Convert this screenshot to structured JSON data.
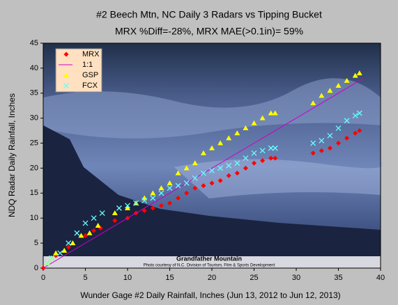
{
  "chart_data": {
    "type": "scatter",
    "title": "#2 Beech Mtn, NC Daily 3 Radars  vs Tipping Bucket",
    "subtitle": "MRX %Diff=-28%, MRX MAE(>0.1in)= 59%",
    "xlabel": "Wunder Gage #2 Daily Rainfall, Inches (Jun 13, 2012 to Jun 12, 2013)",
    "ylabel": "NDQ Radar Daily Rainfall, Inches",
    "annotations": [
      "Grandfather Mountain",
      "Photo courtesy of N.C. Division of Tourism, Film & Sports Development"
    ],
    "xlim": [
      0,
      40
    ],
    "ylim": [
      0,
      45
    ],
    "xticks": [
      0,
      5,
      10,
      15,
      20,
      25,
      30,
      35,
      40
    ],
    "yticks": [
      0,
      5,
      10,
      15,
      20,
      25,
      30,
      35,
      40,
      45
    ],
    "grid": false,
    "legend_position": "upper left",
    "series": [
      {
        "name": "MRX",
        "color": "#ff0000",
        "marker": "diamond",
        "x": [
          0,
          1.5,
          3,
          5,
          6,
          6.8,
          8.5,
          10,
          11,
          12,
          13,
          14,
          15,
          16,
          17,
          18,
          19,
          20,
          21,
          22,
          23,
          24,
          25,
          26,
          27,
          27.5,
          32,
          33,
          34,
          35,
          36,
          37,
          37.5
        ],
        "values": [
          0,
          2.5,
          4.2,
          6.5,
          7.5,
          8,
          9.5,
          10,
          11,
          11.5,
          12,
          12.5,
          13,
          14,
          15,
          16,
          16.5,
          17,
          17.5,
          18.5,
          19,
          20,
          21,
          21.5,
          22,
          22,
          23,
          23.5,
          24,
          25,
          26,
          27,
          27.5
        ]
      },
      {
        "name": "1:1",
        "color": "#cc00cc",
        "marker": "line",
        "x": [
          0,
          38
        ],
        "values": [
          0,
          38
        ]
      },
      {
        "name": "GSP",
        "color": "#ffff00",
        "marker": "triangle",
        "x": [
          0.5,
          1,
          1.5,
          2.5,
          3.5,
          4.5,
          5.5,
          6.5,
          8.5,
          10,
          11,
          12,
          13,
          14,
          15,
          16,
          17,
          18,
          19,
          20,
          21,
          22,
          23,
          24,
          25,
          26,
          27,
          27.5,
          32,
          33,
          34,
          35,
          36,
          37,
          37.5
        ],
        "values": [
          1,
          2,
          3,
          3.5,
          5,
          6.5,
          7,
          8.5,
          11,
          12,
          13,
          14,
          15,
          16,
          17,
          19,
          20,
          21,
          23,
          24,
          25,
          26,
          27,
          28,
          29,
          30,
          31,
          31,
          33,
          34.5,
          35.5,
          36.5,
          37.5,
          38.5,
          39
        ]
      },
      {
        "name": "FCX",
        "color": "#66ffff",
        "marker": "x",
        "x": [
          0.5,
          1,
          2,
          3,
          4,
          5,
          6,
          7,
          9,
          10,
          11,
          12,
          13,
          14,
          15,
          16,
          17,
          18,
          19,
          20,
          21,
          22,
          23,
          24,
          25,
          26,
          27,
          27.5,
          32,
          33,
          34,
          35,
          36,
          37,
          37.5
        ],
        "values": [
          1,
          2,
          3,
          5,
          7,
          9,
          10,
          11,
          12,
          12.5,
          13,
          13.5,
          14,
          15,
          16,
          16.5,
          17,
          18,
          19,
          19.5,
          20,
          20.5,
          21,
          22,
          23,
          23.5,
          24,
          24,
          25,
          25.5,
          26.5,
          28,
          29.5,
          30.5,
          31
        ]
      }
    ]
  }
}
